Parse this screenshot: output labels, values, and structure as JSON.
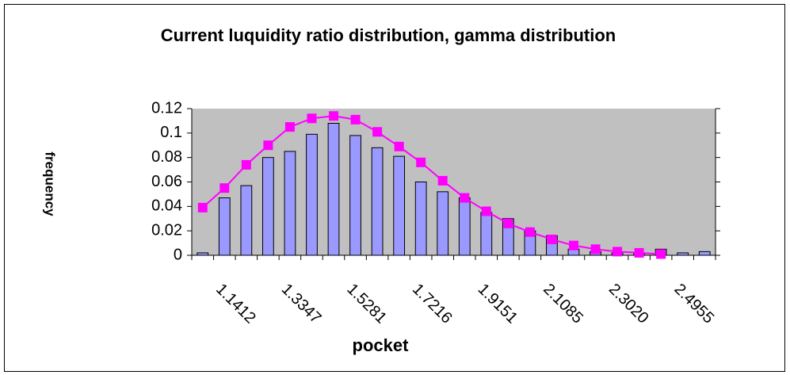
{
  "chart_data": {
    "type": "bar",
    "title": "Current luquidity ratio distribution, gamma distribution",
    "x_label": "pocket",
    "y_label": "frequency",
    "categories": [
      null,
      "1.1412",
      null,
      null,
      "1.3347",
      null,
      null,
      "1.5281",
      null,
      null,
      "1.7216",
      null,
      null,
      "1.9151",
      null,
      null,
      "2.1085",
      null,
      null,
      "2.3020",
      null,
      null,
      "2.4955",
      null
    ],
    "series": [
      {
        "type": "bar",
        "color": "#9999ff",
        "values": [
          0.002,
          0.047,
          0.057,
          0.08,
          0.085,
          0.099,
          0.108,
          0.098,
          0.088,
          0.081,
          0.06,
          0.052,
          0.047,
          0.035,
          0.03,
          0.02,
          0.016,
          0.005,
          0.003,
          0.002,
          0.002,
          0.005,
          0.002,
          0.003
        ]
      },
      {
        "type": "line",
        "color": "#ff00ff",
        "values": [
          0.039,
          0.055,
          0.074,
          0.09,
          0.105,
          0.112,
          0.114,
          0.111,
          0.101,
          0.089,
          0.076,
          0.061,
          0.047,
          0.036,
          0.026,
          0.019,
          0.013,
          0.008,
          0.005,
          0.003,
          0.002,
          0.001,
          null,
          null
        ]
      }
    ],
    "ylim": [
      0,
      0.12
    ],
    "yticks": [
      0,
      0.02,
      0.04,
      0.06,
      0.08,
      0.1,
      0.12
    ],
    "background": "#c0c0c0"
  }
}
